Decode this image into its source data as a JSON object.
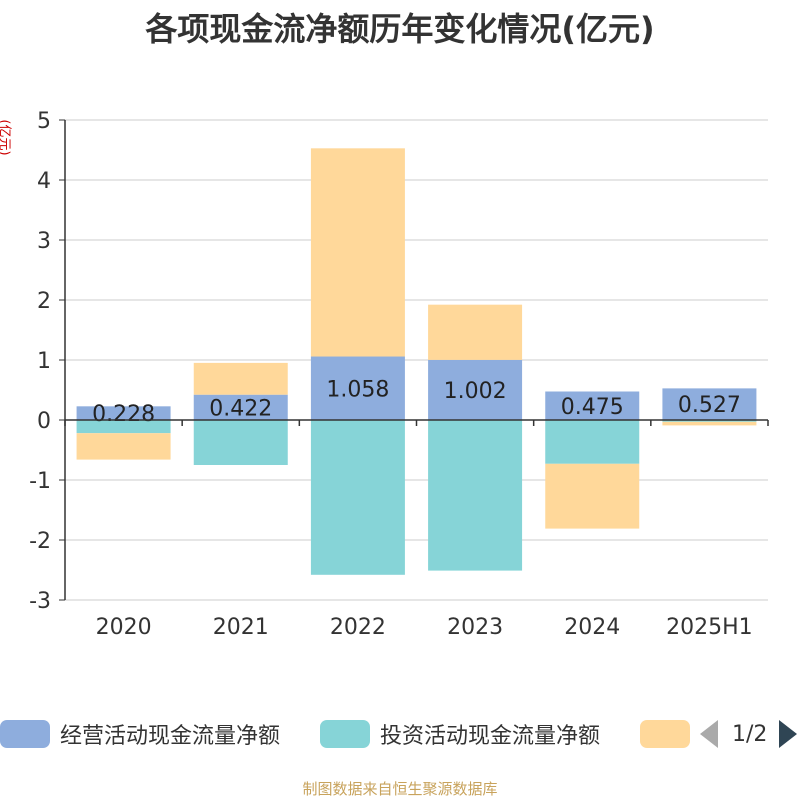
{
  "title": "各项现金流净额历年变化情况(亿元)",
  "y_unit": "(亿元)",
  "footer": "制图数据来自恒生聚源数据库",
  "legend": {
    "items": [
      {
        "label": "经营活动现金流量净额",
        "color": "#8eaddd"
      },
      {
        "label": "投资活动现金流量净额",
        "color": "#86d4d7"
      },
      {
        "label": "",
        "color": "#ffd89a"
      }
    ],
    "page": "1/2"
  },
  "chart_data": {
    "type": "bar",
    "stacked": true,
    "categories": [
      "2020",
      "2021",
      "2022",
      "2023",
      "2024",
      "2025H1"
    ],
    "ylim": [
      -3,
      5
    ],
    "yticks": [
      -3,
      -2,
      -1,
      0,
      1,
      2,
      3,
      4,
      5
    ],
    "grid": true,
    "legend_position": "bottom",
    "series": [
      {
        "name": "经营活动现金流量净额",
        "color": "#8eaddd",
        "values": [
          0.228,
          0.422,
          1.058,
          1.002,
          0.475,
          0.527
        ],
        "labels": [
          "0.228",
          "0.422",
          "1.058",
          "1.002",
          "0.475",
          "0.527"
        ]
      },
      {
        "color": "#86d4d7",
        "values": [
          -0.22,
          -0.75,
          -2.58,
          -2.51,
          -0.73,
          -0.03
        ]
      },
      {
        "color": "#ffd89a",
        "values": [
          -0.44,
          0.53,
          3.47,
          0.92,
          -1.08,
          -0.06
        ]
      }
    ]
  }
}
